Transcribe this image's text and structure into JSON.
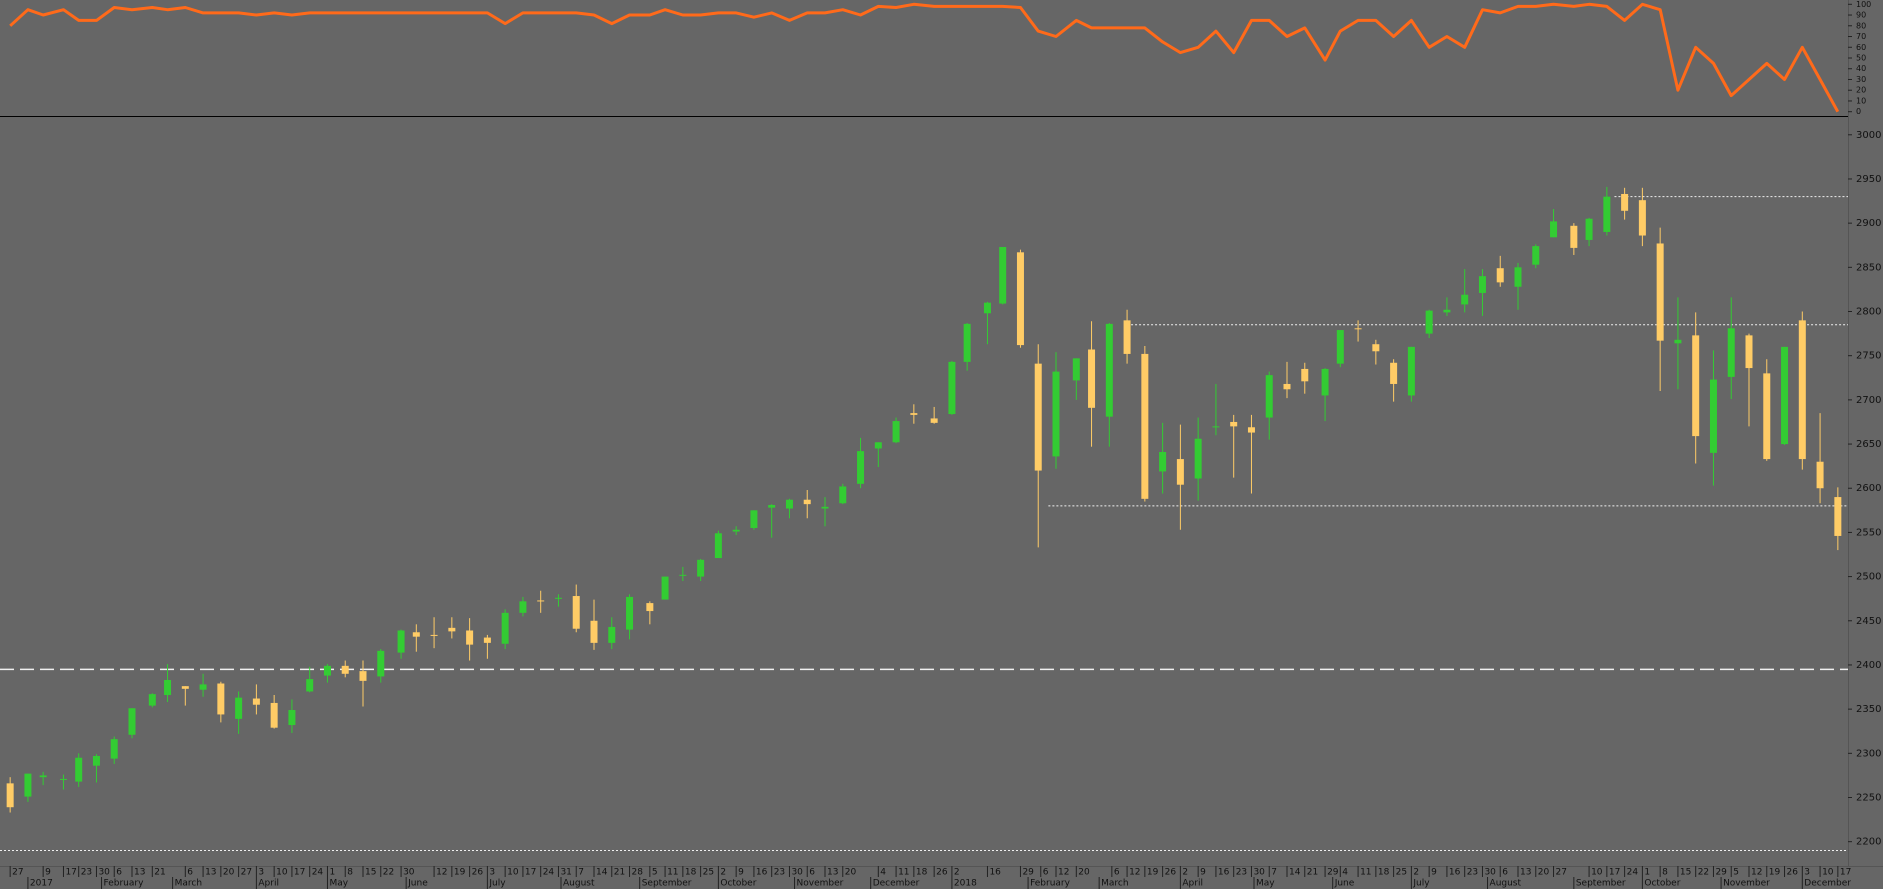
{
  "chart_data": {
    "type": "candlestick",
    "up_color": "#33cc33",
    "down_color": "#ffcc66",
    "xlim": [
      "2016-12-23",
      "2018-12-21"
    ],
    "ylim": [
      2177,
      3019
    ],
    "yticks": [
      2200,
      2250,
      2300,
      2350,
      2400,
      2450,
      2500,
      2550,
      2600,
      2650,
      2700,
      2750,
      2800,
      2850,
      2900,
      2950,
      3000
    ],
    "x": [
      "2016-12-27",
      "2017-01-03",
      "2017-01-09",
      "2017-01-17",
      "2017-01-23",
      "2017-01-30",
      "2017-02-06",
      "2017-02-13",
      "2017-02-21",
      "2017-02-27",
      "2017-03-06",
      "2017-03-13",
      "2017-03-20",
      "2017-03-27",
      "2017-04-03",
      "2017-04-10",
      "2017-04-17",
      "2017-04-24",
      "2017-05-01",
      "2017-05-08",
      "2017-05-15",
      "2017-05-22",
      "2017-05-30",
      "2017-06-05",
      "2017-06-12",
      "2017-06-19",
      "2017-06-26",
      "2017-07-03",
      "2017-07-10",
      "2017-07-17",
      "2017-07-24",
      "2017-07-31",
      "2017-08-07",
      "2017-08-14",
      "2017-08-21",
      "2017-08-28",
      "2017-09-05",
      "2017-09-11",
      "2017-09-18",
      "2017-09-25",
      "2017-10-02",
      "2017-10-09",
      "2017-10-16",
      "2017-10-23",
      "2017-10-30",
      "2017-11-06",
      "2017-11-13",
      "2017-11-20",
      "2017-11-27",
      "2017-12-04",
      "2017-12-11",
      "2017-12-18",
      "2017-12-26",
      "2018-01-02",
      "2018-01-08",
      "2018-01-16",
      "2018-01-22",
      "2018-01-29",
      "2018-02-05",
      "2018-02-12",
      "2018-02-20",
      "2018-02-26",
      "2018-03-05",
      "2018-03-12",
      "2018-03-19",
      "2018-03-26",
      "2018-04-02",
      "2018-04-09",
      "2018-04-16",
      "2018-04-23",
      "2018-04-30",
      "2018-05-07",
      "2018-05-14",
      "2018-05-21",
      "2018-05-29",
      "2018-06-04",
      "2018-06-11",
      "2018-06-18",
      "2018-06-25",
      "2018-07-02",
      "2018-07-09",
      "2018-07-16",
      "2018-07-23",
      "2018-07-30",
      "2018-08-06",
      "2018-08-13",
      "2018-08-20",
      "2018-08-27",
      "2018-09-04",
      "2018-09-10",
      "2018-09-17",
      "2018-09-24",
      "2018-10-01",
      "2018-10-08",
      "2018-10-15",
      "2018-10-22",
      "2018-10-29",
      "2018-11-05",
      "2018-11-12",
      "2018-11-19",
      "2018-11-26",
      "2018-12-03",
      "2018-12-10",
      "2018-12-17"
    ],
    "open": [
      2266,
      2251,
      2273,
      2270,
      2268,
      2286,
      2294,
      2321,
      2354,
      2366,
      2376,
      2372,
      2379,
      2339,
      2362,
      2357,
      2332,
      2370,
      2388,
      2399,
      2393,
      2387,
      2414,
      2437,
      2434,
      2442,
      2439,
      2431,
      2424,
      2459,
      2473,
      2475,
      2478,
      2450,
      2425,
      2440,
      2470,
      2474,
      2502,
      2500,
      2521,
      2551,
      2555,
      2578,
      2577,
      2587,
      2577,
      2583,
      2605,
      2645,
      2652,
      2685,
      2679,
      2684,
      2743,
      2798,
      2809,
      2867,
      2741,
      2636,
      2722,
      2757,
      2681,
      2790,
      2752,
      2619,
      2633,
      2611,
      2670,
      2675,
      2669,
      2680,
      2718,
      2735,
      2705,
      2741,
      2781,
      2763,
      2742,
      2705,
      2775,
      2799,
      2808,
      2821,
      2849,
      2828,
      2853,
      2884,
      2897,
      2881,
      2890,
      2933,
      2926,
      2877,
      2764,
      2773,
      2640,
      2726,
      2773,
      2730,
      2650,
      2790,
      2630,
      2590
    ],
    "high": [
      2273,
      2277,
      2279,
      2276,
      2300,
      2299,
      2319,
      2351,
      2368,
      2401,
      2376,
      2390,
      2381,
      2370,
      2378,
      2366,
      2361,
      2398,
      2401,
      2405,
      2405,
      2418,
      2440,
      2446,
      2454,
      2454,
      2453,
      2434,
      2463,
      2477,
      2484,
      2480,
      2491,
      2474,
      2454,
      2480,
      2472,
      2500,
      2511,
      2520,
      2552,
      2557,
      2575,
      2582,
      2588,
      2598,
      2590,
      2605,
      2657,
      2652,
      2680,
      2695,
      2692,
      2744,
      2787,
      2811,
      2873,
      2870,
      2763,
      2754,
      2747,
      2789,
      2787,
      2802,
      2761,
      2674,
      2672,
      2680,
      2718,
      2683,
      2683,
      2732,
      2743,
      2742,
      2736,
      2779,
      2790,
      2768,
      2746,
      2760,
      2802,
      2816,
      2848,
      2848,
      2863,
      2855,
      2876,
      2916,
      2900,
      2906,
      2941,
      2940,
      2940,
      2895,
      2816,
      2799,
      2756,
      2816,
      2775,
      2746,
      2760,
      2800,
      2685,
      2601
    ],
    "low": [
      2233,
      2245,
      2264,
      2259,
      2262,
      2267,
      2288,
      2317,
      2352,
      2358,
      2354,
      2364,
      2335,
      2322,
      2344,
      2328,
      2323,
      2369,
      2380,
      2386,
      2353,
      2380,
      2407,
      2415,
      2419,
      2430,
      2405,
      2407,
      2418,
      2455,
      2459,
      2466,
      2437,
      2417,
      2418,
      2429,
      2446,
      2474,
      2495,
      2495,
      2521,
      2547,
      2553,
      2544,
      2566,
      2566,
      2557,
      2582,
      2600,
      2624,
      2651,
      2673,
      2673,
      2683,
      2733,
      2763,
      2808,
      2759,
      2533,
      2622,
      2700,
      2647,
      2647,
      2741,
      2585,
      2594,
      2553,
      2586,
      2660,
      2612,
      2594,
      2655,
      2702,
      2707,
      2676,
      2737,
      2766,
      2740,
      2698,
      2698,
      2770,
      2795,
      2799,
      2795,
      2828,
      2802,
      2849,
      2884,
      2864,
      2874,
      2886,
      2904,
      2874,
      2710,
      2712,
      2628,
      2603,
      2701,
      2670,
      2631,
      2649,
      2621,
      2583,
      2530
    ],
    "close": [
      2239,
      2277,
      2275,
      2271,
      2295,
      2297,
      2316,
      2351,
      2367,
      2383,
      2373,
      2378,
      2344,
      2363,
      2355,
      2329,
      2349,
      2384,
      2399,
      2390,
      2382,
      2416,
      2439,
      2432,
      2433,
      2438,
      2423,
      2425,
      2459,
      2472,
      2472,
      2476,
      2441,
      2425,
      2443,
      2477,
      2461,
      2500,
      2502,
      2519,
      2549,
      2553,
      2575,
      2581,
      2587,
      2582,
      2579,
      2602,
      2642,
      2652,
      2676,
      2683,
      2674,
      2743,
      2786,
      2810,
      2873,
      2762,
      2620,
      2732,
      2747,
      2691,
      2786,
      2752,
      2588,
      2641,
      2604,
      2656,
      2670,
      2670,
      2663,
      2728,
      2712,
      2721,
      2735,
      2779,
      2780,
      2755,
      2718,
      2760,
      2801,
      2802,
      2819,
      2840,
      2833,
      2850,
      2874,
      2902,
      2872,
      2905,
      2930,
      2914,
      2886,
      2767,
      2768,
      2659,
      2723,
      2781,
      2736,
      2633,
      2760,
      2633,
      2600,
      2546
    ],
    "reference_lines": [
      {
        "value": 2395,
        "from": "2016-12-23",
        "style": "dashed"
      },
      {
        "value": 2930,
        "from": "2018-09-20",
        "style": "dotted"
      },
      {
        "value": 2785,
        "from": "2018-03-12",
        "style": "dotted"
      },
      {
        "value": 2580,
        "from": "2018-02-09",
        "style": "dotted"
      },
      {
        "value": 2190,
        "from": "2016-12-23",
        "style": "dotted"
      }
    ],
    "indicator": {
      "type": "line",
      "color": "#ff6a1a",
      "ylim": [
        -4,
        104
      ],
      "yticks": [
        0,
        10,
        20,
        30,
        40,
        50,
        60,
        70,
        80,
        90,
        100
      ],
      "values": [
        80,
        95,
        90,
        95,
        85,
        85,
        97,
        95,
        97,
        95,
        97,
        92,
        92,
        92,
        90,
        92,
        90,
        92,
        92,
        92,
        92,
        92,
        92,
        92,
        92,
        92,
        92,
        92,
        82,
        92,
        92,
        92,
        92,
        90,
        82,
        90,
        90,
        95,
        90,
        90,
        92,
        92,
        88,
        92,
        85,
        92,
        92,
        95,
        90,
        98,
        97,
        100,
        98,
        98,
        98,
        98,
        98,
        97,
        75,
        70,
        85,
        78,
        78,
        78,
        78,
        65,
        55,
        60,
        75,
        55,
        85,
        85,
        70,
        78,
        48,
        75,
        85,
        85,
        70,
        85,
        60,
        70,
        60,
        95,
        92,
        98,
        98,
        100,
        98,
        100,
        98,
        85,
        100,
        95,
        20,
        60,
        45,
        15,
        30,
        45,
        30,
        60,
        30,
        0
      ]
    },
    "day_ticks": [
      {
        "value": "2016-12-27",
        "label": "27"
      },
      {
        "value": "2017-01-09",
        "label": "9"
      },
      {
        "value": "2017-01-17",
        "label": "17"
      },
      {
        "value": "2017-01-23",
        "label": "23"
      },
      {
        "value": "2017-01-30",
        "label": "30"
      },
      {
        "value": "2017-02-06",
        "label": "6"
      },
      {
        "value": "2017-02-13",
        "label": "13"
      },
      {
        "value": "2017-02-21",
        "label": "21"
      },
      {
        "value": "2017-03-06",
        "label": "6"
      },
      {
        "value": "2017-03-13",
        "label": "13"
      },
      {
        "value": "2017-03-20",
        "label": "20"
      },
      {
        "value": "2017-03-27",
        "label": "27"
      },
      {
        "value": "2017-04-03",
        "label": "3"
      },
      {
        "value": "2017-04-10",
        "label": "10"
      },
      {
        "value": "2017-04-17",
        "label": "17"
      },
      {
        "value": "2017-04-24",
        "label": "24"
      },
      {
        "value": "2017-05-01",
        "label": "1"
      },
      {
        "value": "2017-05-08",
        "label": "8"
      },
      {
        "value": "2017-05-15",
        "label": "15"
      },
      {
        "value": "2017-05-22",
        "label": "22"
      },
      {
        "value": "2017-05-30",
        "label": "30"
      },
      {
        "value": "2017-06-12",
        "label": "12"
      },
      {
        "value": "2017-06-19",
        "label": "19"
      },
      {
        "value": "2017-06-26",
        "label": "26"
      },
      {
        "value": "2017-07-03",
        "label": "3"
      },
      {
        "value": "2017-07-10",
        "label": "10"
      },
      {
        "value": "2017-07-17",
        "label": "17"
      },
      {
        "value": "2017-07-24",
        "label": "24"
      },
      {
        "value": "2017-07-31",
        "label": "31"
      },
      {
        "value": "2017-08-07",
        "label": "7"
      },
      {
        "value": "2017-08-14",
        "label": "14"
      },
      {
        "value": "2017-08-21",
        "label": "21"
      },
      {
        "value": "2017-08-28",
        "label": "28"
      },
      {
        "value": "2017-09-05",
        "label": "5"
      },
      {
        "value": "2017-09-11",
        "label": "11"
      },
      {
        "value": "2017-09-18",
        "label": "18"
      },
      {
        "value": "2017-09-25",
        "label": "25"
      },
      {
        "value": "2017-10-02",
        "label": "2"
      },
      {
        "value": "2017-10-09",
        "label": "9"
      },
      {
        "value": "2017-10-16",
        "label": "16"
      },
      {
        "value": "2017-10-23",
        "label": "23"
      },
      {
        "value": "2017-10-30",
        "label": "30"
      },
      {
        "value": "2017-11-06",
        "label": "6"
      },
      {
        "value": "2017-11-13",
        "label": "13"
      },
      {
        "value": "2017-11-20",
        "label": "20"
      },
      {
        "value": "2017-12-04",
        "label": "4"
      },
      {
        "value": "2017-12-11",
        "label": "11"
      },
      {
        "value": "2017-12-18",
        "label": "18"
      },
      {
        "value": "2017-12-26",
        "label": "26"
      },
      {
        "value": "2018-01-02",
        "label": "2"
      },
      {
        "value": "2018-01-16",
        "label": "16"
      },
      {
        "value": "2018-01-29",
        "label": "29"
      },
      {
        "value": "2018-02-06",
        "label": "6"
      },
      {
        "value": "2018-02-12",
        "label": "12"
      },
      {
        "value": "2018-02-20",
        "label": "20"
      },
      {
        "value": "2018-03-06",
        "label": "6"
      },
      {
        "value": "2018-03-12",
        "label": "12"
      },
      {
        "value": "2018-03-19",
        "label": "19"
      },
      {
        "value": "2018-03-26",
        "label": "26"
      },
      {
        "value": "2018-04-02",
        "label": "2"
      },
      {
        "value": "2018-04-09",
        "label": "9"
      },
      {
        "value": "2018-04-16",
        "label": "16"
      },
      {
        "value": "2018-04-23",
        "label": "23"
      },
      {
        "value": "2018-04-30",
        "label": "30"
      },
      {
        "value": "2018-05-07",
        "label": "7"
      },
      {
        "value": "2018-05-14",
        "label": "14"
      },
      {
        "value": "2018-05-21",
        "label": "21"
      },
      {
        "value": "2018-05-29",
        "label": "29"
      },
      {
        "value": "2018-06-04",
        "label": "4"
      },
      {
        "value": "2018-06-11",
        "label": "11"
      },
      {
        "value": "2018-06-18",
        "label": "18"
      },
      {
        "value": "2018-06-25",
        "label": "25"
      },
      {
        "value": "2018-07-02",
        "label": "2"
      },
      {
        "value": "2018-07-09",
        "label": "9"
      },
      {
        "value": "2018-07-16",
        "label": "16"
      },
      {
        "value": "2018-07-23",
        "label": "23"
      },
      {
        "value": "2018-07-30",
        "label": "30"
      },
      {
        "value": "2018-08-06",
        "label": "6"
      },
      {
        "value": "2018-08-13",
        "label": "13"
      },
      {
        "value": "2018-08-20",
        "label": "20"
      },
      {
        "value": "2018-08-27",
        "label": "27"
      },
      {
        "value": "2018-09-10",
        "label": "10"
      },
      {
        "value": "2018-09-17",
        "label": "17"
      },
      {
        "value": "2018-09-24",
        "label": "24"
      },
      {
        "value": "2018-10-01",
        "label": "1"
      },
      {
        "value": "2018-10-08",
        "label": "8"
      },
      {
        "value": "2018-10-15",
        "label": "15"
      },
      {
        "value": "2018-10-22",
        "label": "22"
      },
      {
        "value": "2018-10-29",
        "label": "29"
      },
      {
        "value": "2018-11-05",
        "label": "5"
      },
      {
        "value": "2018-11-12",
        "label": "12"
      },
      {
        "value": "2018-11-19",
        "label": "19"
      },
      {
        "value": "2018-11-26",
        "label": "26"
      },
      {
        "value": "2018-12-03",
        "label": "3"
      },
      {
        "value": "2018-12-10",
        "label": "10"
      },
      {
        "value": "2018-12-17",
        "label": "17"
      }
    ],
    "month_ticks": [
      {
        "value": "2017-01-03",
        "label": "2017"
      },
      {
        "value": "2017-02-01",
        "label": "February"
      },
      {
        "value": "2017-03-01",
        "label": "March"
      },
      {
        "value": "2017-04-03",
        "label": "April"
      },
      {
        "value": "2017-05-01",
        "label": "May"
      },
      {
        "value": "2017-06-01",
        "label": "June"
      },
      {
        "value": "2017-07-03",
        "label": "July"
      },
      {
        "value": "2017-08-01",
        "label": "August"
      },
      {
        "value": "2017-09-01",
        "label": "September"
      },
      {
        "value": "2017-10-02",
        "label": "October"
      },
      {
        "value": "2017-11-01",
        "label": "November"
      },
      {
        "value": "2017-12-01",
        "label": "December"
      },
      {
        "value": "2018-01-02",
        "label": "2018"
      },
      {
        "value": "2018-02-01",
        "label": "February"
      },
      {
        "value": "2018-03-01",
        "label": "March"
      },
      {
        "value": "2018-04-02",
        "label": "April"
      },
      {
        "value": "2018-05-01",
        "label": "May"
      },
      {
        "value": "2018-06-01",
        "label": "June"
      },
      {
        "value": "2018-07-02",
        "label": "July"
      },
      {
        "value": "2018-08-01",
        "label": "August"
      },
      {
        "value": "2018-09-04",
        "label": "September"
      },
      {
        "value": "2018-10-01",
        "label": "October"
      },
      {
        "value": "2018-11-01",
        "label": "November"
      },
      {
        "value": "2018-12-03",
        "label": "December"
      }
    ]
  }
}
